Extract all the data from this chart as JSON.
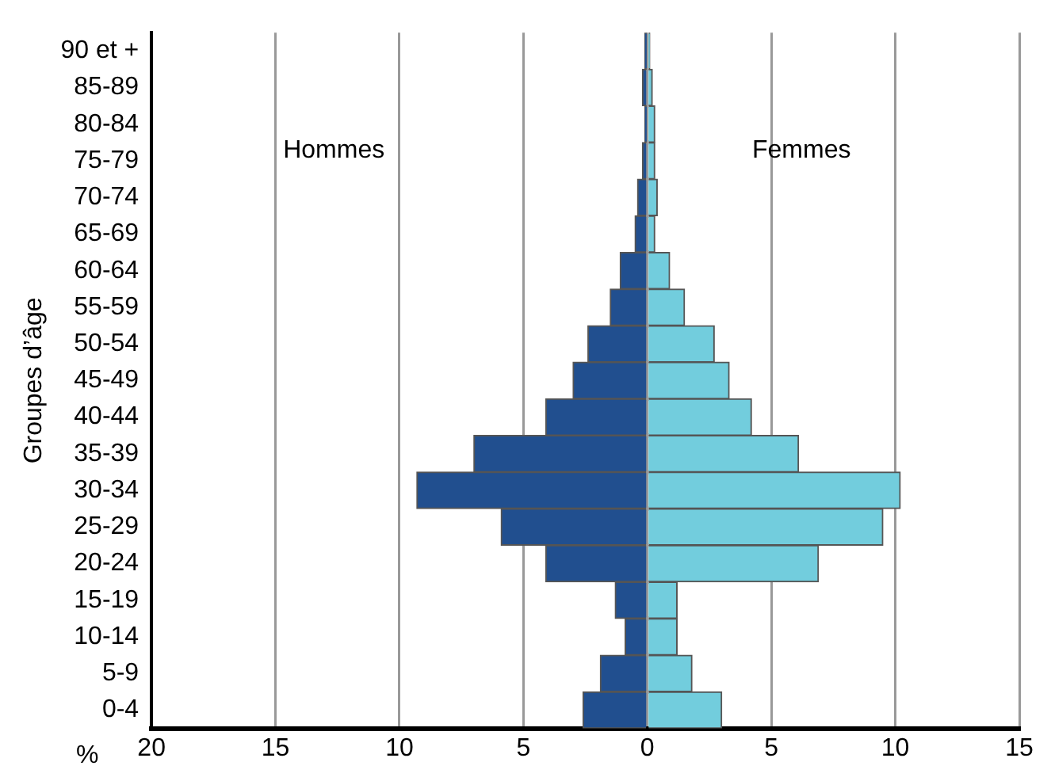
{
  "chart_data": {
    "type": "bar",
    "orientation": "horizontal",
    "stacked": true,
    "categories": [
      "90 et +",
      "85-89",
      "80-84",
      "75-79",
      "70-74",
      "65-69",
      "60-64",
      "55-59",
      "50-54",
      "45-49",
      "40-44",
      "35-39",
      "30-34",
      "25-29",
      "20-24",
      "15-19",
      "10-14",
      "5-9",
      "0-4"
    ],
    "series": [
      {
        "color": "#214f8f",
        "values": [
          -0.1,
          -0.2,
          -0.1,
          -0.2,
          -0.4,
          -0.5,
          -1.1,
          -1.5,
          -2.4,
          -3.0,
          -4.1,
          -7.0,
          -9.3,
          -5.9,
          -4.1,
          -1.3,
          -0.9,
          -1.9,
          -2.6
        ]
      },
      {
        "color": "#72cddd",
        "values": [
          0.1,
          0.2,
          0.3,
          0.3,
          0.4,
          0.3,
          0.9,
          1.5,
          2.7,
          3.3,
          4.2,
          6.1,
          10.2,
          9.5,
          6.9,
          1.2,
          1.2,
          1.8,
          3.0
        ]
      }
    ],
    "xlim": [
      -20,
      15
    ],
    "xticks": [
      {
        "value": -20,
        "label": "20"
      },
      {
        "value": -15,
        "label": "15"
      },
      {
        "value": -10,
        "label": "10"
      },
      {
        "value": -5,
        "label": "5"
      },
      0,
      5,
      10,
      15
    ],
    "xlabel": "%",
    "ylabel": "Groupes d’âge",
    "annotations": [
      "Hommes",
      "Femmes"
    ],
    "grid": "x"
  }
}
